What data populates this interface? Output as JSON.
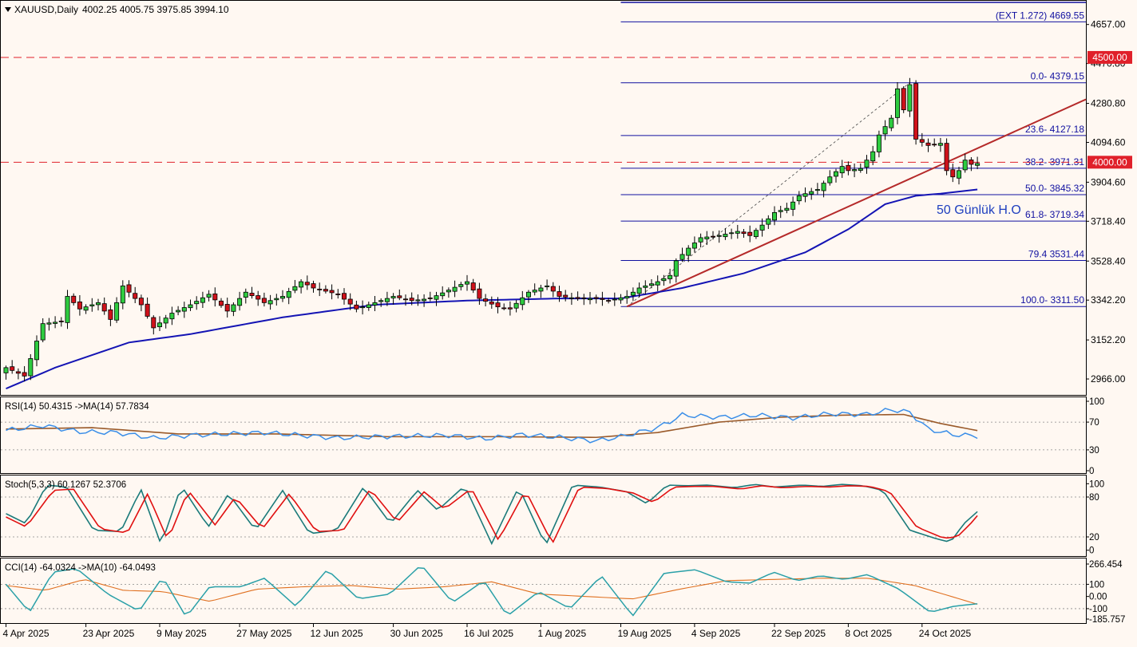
{
  "header": {
    "symbol": "XAUUSD,Daily",
    "ohlc": "4002.25 4005.75 3975.85 3994.10"
  },
  "chart_data": {
    "type": "candlestick",
    "price_axis": {
      "ticks": [
        2966.0,
        3152.2,
        3342.2,
        3528.4,
        3718.4,
        3904.6,
        4094.6,
        4280.8,
        4470.8,
        4657.0
      ],
      "ylim": [
        2890,
        4770
      ]
    },
    "current_price_label": "4000.00",
    "horizontal_lines": [
      {
        "value": 4500.0,
        "label": "4500.00",
        "style": "dashed",
        "color": "#e0202a"
      },
      {
        "value": 4000.0,
        "label": "4000.00",
        "style": "dashed",
        "color": "#e0202a"
      }
    ],
    "fibonacci": [
      {
        "value": 4669.55,
        "label": "(EXT 1.272)  4669.55"
      },
      {
        "value": 4379.15,
        "label": "0.0- 4379.15"
      },
      {
        "value": 4127.18,
        "label": "23.6- 4127.18"
      },
      {
        "value": 3971.31,
        "label": "38.2- 3971.31"
      },
      {
        "value": 3845.32,
        "label": "50.0- 3845.32"
      },
      {
        "value": 3719.34,
        "label": "61.8- 3719.34"
      },
      {
        "value": 3531.44,
        "label": "79.4 3531.44"
      },
      {
        "value": 3311.5,
        "label": "100.0- 3311.50"
      }
    ],
    "ma_annotation": "50 Günlük H.O",
    "x_labels": [
      "4 Apr 2025",
      "23 Apr 2025",
      "9 May 2025",
      "27 May 2025",
      "12 Jun 2025",
      "30 Jun 2025",
      "16 Jul 2025",
      "1 Aug 2025",
      "19 Aug 2025",
      "4 Sep 2025",
      "22 Sep 2025",
      "8 Oct 2025",
      "24 Oct 2025"
    ],
    "x_label_bars": [
      0,
      13,
      25,
      38,
      50,
      63,
      75,
      87,
      100,
      112,
      125,
      137,
      149
    ],
    "close_anchors": [
      [
        0,
        3020
      ],
      [
        3,
        2980
      ],
      [
        6,
        3230
      ],
      [
        9,
        3240
      ],
      [
        10,
        3360
      ],
      [
        12,
        3300
      ],
      [
        15,
        3330
      ],
      [
        17,
        3250
      ],
      [
        19,
        3410
      ],
      [
        22,
        3320
      ],
      [
        24,
        3210
      ],
      [
        27,
        3280
      ],
      [
        30,
        3320
      ],
      [
        33,
        3370
      ],
      [
        36,
        3290
      ],
      [
        39,
        3380
      ],
      [
        42,
        3330
      ],
      [
        45,
        3360
      ],
      [
        48,
        3430
      ],
      [
        50,
        3400
      ],
      [
        54,
        3370
      ],
      [
        57,
        3300
      ],
      [
        60,
        3330
      ],
      [
        63,
        3360
      ],
      [
        66,
        3340
      ],
      [
        69,
        3350
      ],
      [
        72,
        3390
      ],
      [
        75,
        3430
      ],
      [
        77,
        3350
      ],
      [
        80,
        3310
      ],
      [
        82,
        3300
      ],
      [
        85,
        3380
      ],
      [
        88,
        3410
      ],
      [
        90,
        3360
      ],
      [
        93,
        3350
      ],
      [
        96,
        3350
      ],
      [
        98,
        3340
      ],
      [
        101,
        3360
      ],
      [
        103,
        3400
      ],
      [
        106,
        3430
      ],
      [
        108,
        3460
      ],
      [
        109,
        3530
      ],
      [
        111,
        3590
      ],
      [
        113,
        3640
      ],
      [
        116,
        3650
      ],
      [
        119,
        3670
      ],
      [
        121,
        3650
      ],
      [
        123,
        3700
      ],
      [
        125,
        3760
      ],
      [
        127,
        3780
      ],
      [
        129,
        3840
      ],
      [
        132,
        3870
      ],
      [
        134,
        3930
      ],
      [
        136,
        3980
      ],
      [
        137,
        3960
      ],
      [
        139,
        3970
      ],
      [
        141,
        4050
      ],
      [
        142,
        4130
      ],
      [
        144,
        4210
      ],
      [
        145,
        4350
      ],
      [
        146,
        4250
      ],
      [
        147,
        4370
      ],
      [
        148,
        4110
      ],
      [
        150,
        4080
      ],
      [
        152,
        4090
      ],
      [
        153,
        3960
      ],
      [
        154,
        3930
      ],
      [
        155,
        3960
      ],
      [
        156,
        4010
      ],
      [
        157,
        3990
      ],
      [
        158,
        3994
      ]
    ],
    "ma50_anchors": [
      [
        0,
        2920
      ],
      [
        8,
        3020
      ],
      [
        20,
        3140
      ],
      [
        30,
        3180
      ],
      [
        45,
        3260
      ],
      [
        60,
        3320
      ],
      [
        75,
        3340
      ],
      [
        90,
        3350
      ],
      [
        100,
        3350
      ],
      [
        110,
        3400
      ],
      [
        120,
        3470
      ],
      [
        130,
        3570
      ],
      [
        137,
        3680
      ],
      [
        140,
        3740
      ],
      [
        143,
        3800
      ],
      [
        148,
        3840
      ],
      [
        152,
        3850
      ],
      [
        158,
        3870
      ]
    ],
    "rsi": {
      "label": "RSI(14) 50.4315  ->MA(14) 57.7834",
      "ticks": [
        "100",
        "70",
        "30",
        "0"
      ],
      "levels": [
        70,
        30
      ],
      "anchors": [
        [
          0,
          58
        ],
        [
          6,
          65
        ],
        [
          12,
          56
        ],
        [
          18,
          55
        ],
        [
          24,
          47
        ],
        [
          30,
          51
        ],
        [
          36,
          53
        ],
        [
          42,
          55
        ],
        [
          48,
          51
        ],
        [
          54,
          47
        ],
        [
          60,
          49
        ],
        [
          66,
          50
        ],
        [
          72,
          51
        ],
        [
          78,
          46
        ],
        [
          84,
          52
        ],
        [
          90,
          48
        ],
        [
          96,
          43
        ],
        [
          100,
          49
        ],
        [
          106,
          62
        ],
        [
          110,
          80
        ],
        [
          116,
          77
        ],
        [
          122,
          80
        ],
        [
          128,
          76
        ],
        [
          134,
          82
        ],
        [
          140,
          81
        ],
        [
          144,
          88
        ],
        [
          147,
          84
        ],
        [
          150,
          60
        ],
        [
          154,
          52
        ],
        [
          158,
          50
        ]
      ],
      "ma_anchors": [
        [
          0,
          60
        ],
        [
          14,
          62
        ],
        [
          28,
          53
        ],
        [
          44,
          53
        ],
        [
          62,
          49
        ],
        [
          80,
          49
        ],
        [
          96,
          48
        ],
        [
          106,
          55
        ],
        [
          116,
          70
        ],
        [
          126,
          77
        ],
        [
          136,
          80
        ],
        [
          146,
          81
        ],
        [
          152,
          68
        ],
        [
          158,
          57.8
        ]
      ]
    },
    "stoch": {
      "label": "Stoch(5,3,3) 60.1267 52.3706",
      "ticks": [
        "100",
        "80",
        "20",
        "0"
      ],
      "levels": [
        80,
        20
      ],
      "anchors": [
        [
          0,
          55
        ],
        [
          3,
          40
        ],
        [
          6,
          98
        ],
        [
          9,
          95
        ],
        [
          13,
          30
        ],
        [
          17,
          28
        ],
        [
          20,
          92
        ],
        [
          23,
          8
        ],
        [
          26,
          97
        ],
        [
          30,
          35
        ],
        [
          33,
          85
        ],
        [
          37,
          30
        ],
        [
          41,
          90
        ],
        [
          45,
          25
        ],
        [
          49,
          30
        ],
        [
          53,
          95
        ],
        [
          57,
          40
        ],
        [
          61,
          90
        ],
        [
          64,
          60
        ],
        [
          68,
          97
        ],
        [
          72,
          10
        ],
        [
          76,
          95
        ],
        [
          80,
          7
        ],
        [
          84,
          98
        ],
        [
          88,
          95
        ],
        [
          92,
          88
        ],
        [
          95,
          70
        ],
        [
          98,
          98
        ],
        [
          101,
          97
        ],
        [
          104,
          98
        ],
        [
          108,
          94
        ],
        [
          111,
          99
        ],
        [
          114,
          95
        ],
        [
          118,
          98
        ],
        [
          121,
          96
        ],
        [
          124,
          99
        ],
        [
          127,
          97
        ],
        [
          130,
          90
        ],
        [
          134,
          30
        ],
        [
          138,
          17
        ],
        [
          140,
          12
        ],
        [
          142,
          40
        ],
        [
          144,
          58
        ]
      ],
      "signal_anchors": [
        [
          0,
          50
        ],
        [
          3,
          35
        ],
        [
          7,
          90
        ],
        [
          10,
          92
        ],
        [
          14,
          32
        ],
        [
          18,
          26
        ],
        [
          21,
          85
        ],
        [
          24,
          15
        ],
        [
          27,
          90
        ],
        [
          31,
          38
        ],
        [
          34,
          80
        ],
        [
          38,
          32
        ],
        [
          42,
          85
        ],
        [
          46,
          28
        ],
        [
          50,
          30
        ],
        [
          54,
          92
        ],
        [
          58,
          42
        ],
        [
          62,
          88
        ],
        [
          65,
          62
        ],
        [
          69,
          93
        ],
        [
          73,
          15
        ],
        [
          77,
          90
        ],
        [
          81,
          10
        ],
        [
          85,
          95
        ],
        [
          89,
          93
        ],
        [
          93,
          86
        ],
        [
          96,
          72
        ],
        [
          99,
          95
        ],
        [
          102,
          96
        ],
        [
          105,
          96
        ],
        [
          109,
          92
        ],
        [
          112,
          97
        ],
        [
          115,
          94
        ],
        [
          119,
          96
        ],
        [
          122,
          95
        ],
        [
          125,
          97
        ],
        [
          128,
          96
        ],
        [
          131,
          88
        ],
        [
          135,
          35
        ],
        [
          139,
          18
        ],
        [
          141,
          20
        ],
        [
          143,
          40
        ],
        [
          144,
          52
        ]
      ]
    },
    "cci": {
      "label": "CCI(14) -64.0324  ->MA(10) -64.0493",
      "ticks": [
        "266.454",
        "100",
        "0.00",
        "-100",
        "-185.757"
      ],
      "levels": [
        100,
        -100
      ],
      "ylim": [
        -185.757,
        266.454
      ],
      "anchors": [
        [
          0,
          100
        ],
        [
          3,
          -130
        ],
        [
          6,
          200
        ],
        [
          9,
          230
        ],
        [
          13,
          20
        ],
        [
          17,
          -120
        ],
        [
          20,
          160
        ],
        [
          23,
          -170
        ],
        [
          26,
          80
        ],
        [
          30,
          80
        ],
        [
          33,
          150
        ],
        [
          37,
          -80
        ],
        [
          41,
          220
        ],
        [
          45,
          -20
        ],
        [
          49,
          20
        ],
        [
          53,
          260
        ],
        [
          57,
          -50
        ],
        [
          61,
          130
        ],
        [
          64,
          -160
        ],
        [
          68,
          40
        ],
        [
          72,
          -100
        ],
        [
          76,
          170
        ],
        [
          80,
          -160
        ],
        [
          84,
          190
        ],
        [
          88,
          220
        ],
        [
          92,
          120
        ],
        [
          95,
          110
        ],
        [
          98,
          200
        ],
        [
          101,
          130
        ],
        [
          104,
          170
        ],
        [
          107,
          140
        ],
        [
          110,
          180
        ],
        [
          114,
          60
        ],
        [
          118,
          -130
        ],
        [
          121,
          -80
        ],
        [
          124,
          -60
        ]
      ],
      "ma_anchors": [
        [
          0,
          90
        ],
        [
          5,
          50
        ],
        [
          10,
          140
        ],
        [
          15,
          50
        ],
        [
          20,
          40
        ],
        [
          26,
          -40
        ],
        [
          32,
          60
        ],
        [
          38,
          80
        ],
        [
          44,
          90
        ],
        [
          50,
          60
        ],
        [
          56,
          80
        ],
        [
          62,
          120
        ],
        [
          68,
          20
        ],
        [
          74,
          0
        ],
        [
          80,
          -20
        ],
        [
          86,
          60
        ],
        [
          92,
          130
        ],
        [
          98,
          140
        ],
        [
          104,
          150
        ],
        [
          110,
          150
        ],
        [
          116,
          90
        ],
        [
          124,
          -64
        ]
      ]
    }
  }
}
